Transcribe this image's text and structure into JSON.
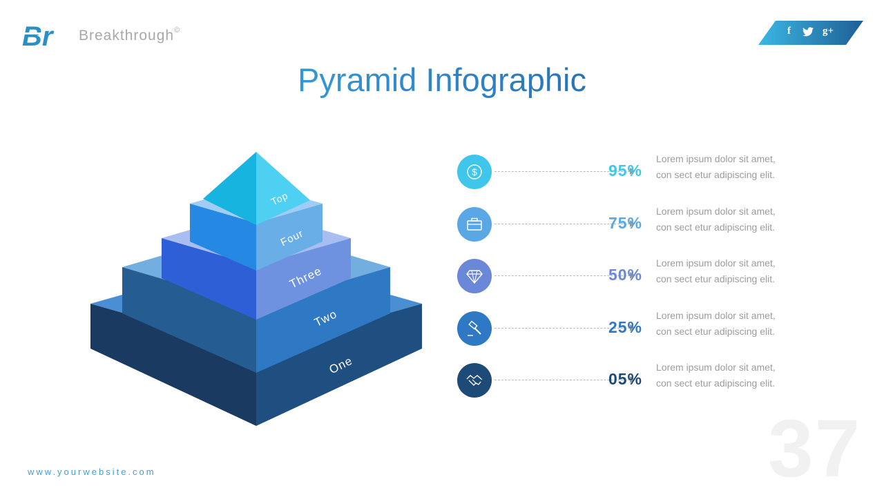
{
  "header": {
    "logo_text": "Br",
    "brand": "Breakthrough",
    "brand_mark": "©"
  },
  "social": [
    {
      "icon": "facebook-icon",
      "glyph": "f"
    },
    {
      "icon": "twitter-icon",
      "glyph": "t"
    },
    {
      "icon": "google-plus-icon",
      "glyph": "g+"
    }
  ],
  "title": "Pyramid Infographic",
  "pyramid": {
    "levels": [
      "One",
      "Two",
      "Three",
      "Four",
      "Top"
    ]
  },
  "items": [
    {
      "icon": "dollar-icon",
      "percent": "95%",
      "line1": "Lorem ipsum dolor sit amet,",
      "line2": "con sect etur adipiscing elit.",
      "color": "#3fc6ea"
    },
    {
      "icon": "briefcase-icon",
      "percent": "75%",
      "line1": "Lorem ipsum dolor sit amet,",
      "line2": "con sect etur adipiscing elit.",
      "color": "#5aa7e6"
    },
    {
      "icon": "diamond-icon",
      "percent": "50%",
      "line1": "Lorem ipsum dolor sit amet,",
      "line2": "con sect etur adipiscing elit.",
      "color": "#6b88d8"
    },
    {
      "icon": "gavel-icon",
      "percent": "25%",
      "line1": "Lorem ipsum dolor sit amet,",
      "line2": "con sect etur adipiscing elit.",
      "color": "#2f78c4"
    },
    {
      "icon": "handshake-icon",
      "percent": "05%",
      "line1": "Lorem ipsum dolor sit amet,",
      "line2": "con sect etur adipiscing elit.",
      "color": "#1e4a78"
    }
  ],
  "footer": {
    "website": "www.yourwebsite.com",
    "page_number": "37"
  }
}
